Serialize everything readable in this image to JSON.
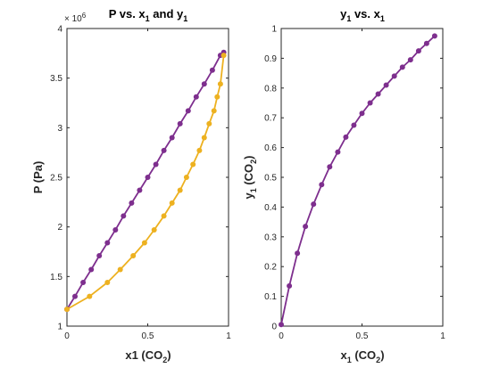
{
  "chart_data": [
    {
      "type": "line",
      "title_main": "P vs. x",
      "title_sub1": "1",
      "title_mid": " and y",
      "title_sub2": "1",
      "xlabel": "x1 (CO",
      "xlabel_sub": "2",
      "xlabel_end": ")",
      "ylabel": "P (Pa)",
      "xlim": [
        0,
        1
      ],
      "ylim": [
        1,
        4
      ],
      "y_exponent_base": "× 10",
      "y_exponent_power": "6",
      "xticks": [
        0,
        0.5,
        1
      ],
      "xtick_labels": [
        "0",
        "0.5",
        "1"
      ],
      "yticks": [
        1,
        1.5,
        2,
        2.5,
        3,
        3.5,
        4
      ],
      "ytick_labels": [
        "1",
        "1.5",
        "2",
        "2.5",
        "3",
        "3.5",
        "4"
      ],
      "grid": true,
      "series": [
        {
          "color": "#7e2f8e",
          "x": [
            0,
            0.05,
            0.1,
            0.15,
            0.2,
            0.25,
            0.3,
            0.35,
            0.4,
            0.45,
            0.5,
            0.55,
            0.6,
            0.65,
            0.7,
            0.75,
            0.8,
            0.85,
            0.9,
            0.95,
            0.97
          ],
          "y": [
            1.17,
            1.3,
            1.44,
            1.57,
            1.71,
            1.84,
            1.97,
            2.11,
            2.24,
            2.37,
            2.5,
            2.63,
            2.77,
            2.9,
            3.04,
            3.17,
            3.31,
            3.44,
            3.58,
            3.73,
            3.76
          ]
        },
        {
          "color": "#edb120",
          "x": [
            0,
            0.14,
            0.25,
            0.33,
            0.41,
            0.48,
            0.54,
            0.6,
            0.65,
            0.7,
            0.74,
            0.78,
            0.82,
            0.85,
            0.88,
            0.91,
            0.93,
            0.95,
            0.97
          ],
          "y": [
            1.17,
            1.3,
            1.44,
            1.57,
            1.71,
            1.84,
            1.97,
            2.11,
            2.24,
            2.37,
            2.5,
            2.63,
            2.77,
            2.9,
            3.04,
            3.17,
            3.31,
            3.44,
            3.73
          ]
        }
      ]
    },
    {
      "type": "line",
      "title_main": "y",
      "title_sub1": "1",
      "title_mid": " vs. x",
      "title_sub2": "1",
      "xlabel": "x",
      "xlabel_sub": "1",
      "xlabel_end": " (CO",
      "xlabel_sub2": "2",
      "xlabel_end2": ")",
      "ylabel": "y",
      "ylabel_sub": "1",
      "ylabel_end": " (CO",
      "ylabel_sub2": "2",
      "ylabel_end2": ")",
      "xlim": [
        0,
        1
      ],
      "ylim": [
        0,
        1
      ],
      "xticks": [
        0,
        0.5,
        1
      ],
      "xtick_labels": [
        "0",
        "0.5",
        "1"
      ],
      "yticks": [
        0,
        0.1,
        0.2,
        0.3,
        0.4,
        0.5,
        0.6,
        0.7,
        0.8,
        0.9,
        1
      ],
      "ytick_labels": [
        "0",
        "0.1",
        "0.2",
        "0.3",
        "0.4",
        "0.5",
        "0.6",
        "0.7",
        "0.8",
        "0.9",
        "1"
      ],
      "grid": true,
      "series": [
        {
          "color": "#7e2f8e",
          "x": [
            0,
            0.05,
            0.1,
            0.15,
            0.2,
            0.25,
            0.3,
            0.35,
            0.4,
            0.45,
            0.5,
            0.55,
            0.6,
            0.65,
            0.7,
            0.75,
            0.8,
            0.85,
            0.9,
            0.95
          ],
          "y": [
            0.005,
            0.135,
            0.245,
            0.335,
            0.41,
            0.475,
            0.535,
            0.585,
            0.635,
            0.675,
            0.715,
            0.75,
            0.78,
            0.81,
            0.84,
            0.87,
            0.895,
            0.925,
            0.95,
            0.975
          ]
        }
      ]
    }
  ]
}
